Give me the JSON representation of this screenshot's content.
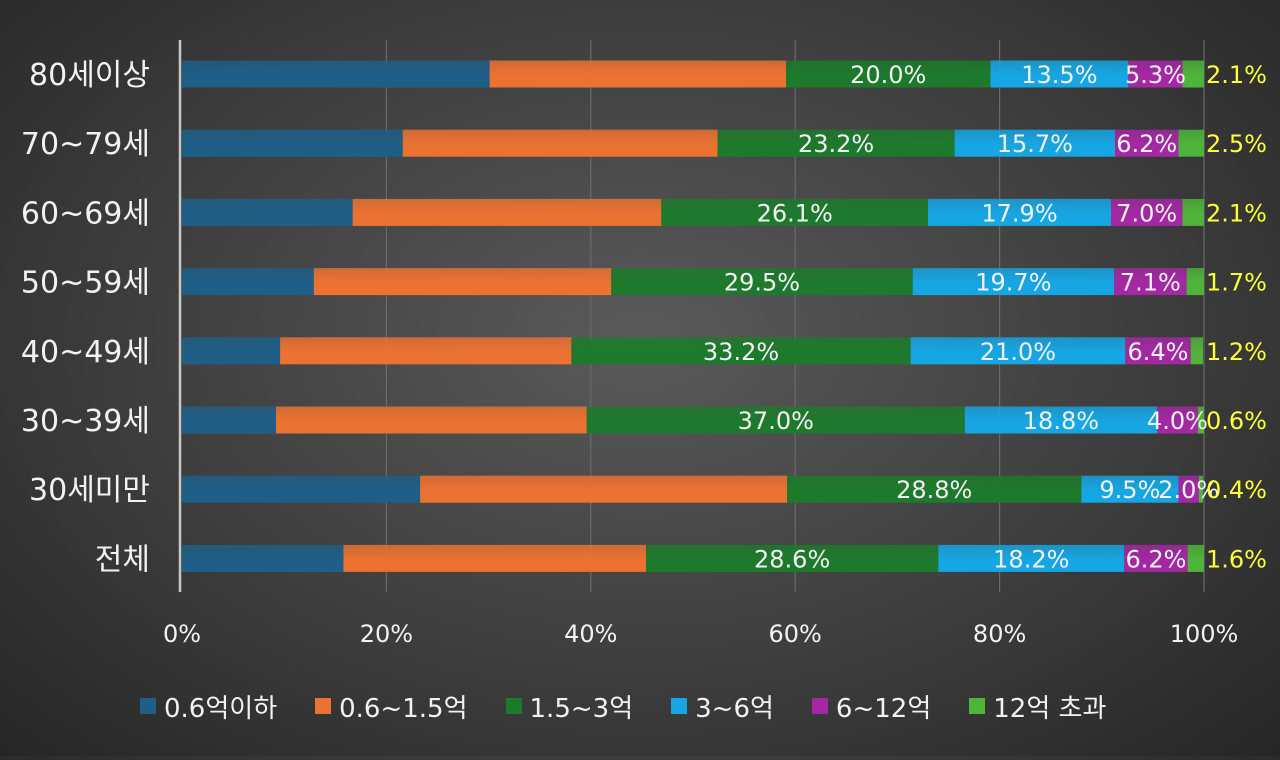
{
  "chart_data": {
    "type": "bar",
    "orientation": "horizontal",
    "stacked": true,
    "categories": [
      "80세이상",
      "70~79세",
      "60~69세",
      "50~59세",
      "40~49세",
      "30~39세",
      "30세미만",
      "전체"
    ],
    "series": [
      {
        "name": "0.6억이하",
        "color": "#1f5f87",
        "values": [
          30.1,
          21.6,
          16.7,
          12.9,
          9.6,
          9.2,
          23.3,
          15.8
        ],
        "labels": [
          "",
          "",
          "",
          "",
          "",
          "",
          "",
          ""
        ]
      },
      {
        "name": "0.6~1.5억",
        "color": "#ec7232",
        "values": [
          29.0,
          30.8,
          30.2,
          29.1,
          28.5,
          30.4,
          35.9,
          29.6
        ],
        "labels": [
          "",
          "",
          "",
          "",
          "",
          "",
          "",
          ""
        ]
      },
      {
        "name": "1.5~3억",
        "color": "#1d7a2c",
        "values": [
          20.0,
          23.2,
          26.1,
          29.5,
          33.2,
          37.0,
          28.8,
          28.6
        ],
        "labels": [
          "20.0%",
          "23.2%",
          "26.1%",
          "29.5%",
          "33.2%",
          "37.0%",
          "28.8%",
          "28.6%"
        ]
      },
      {
        "name": "3~6억",
        "color": "#16a6e3",
        "values": [
          13.5,
          15.7,
          17.9,
          19.7,
          21.0,
          18.8,
          9.5,
          18.2
        ],
        "labels": [
          "13.5%",
          "15.7%",
          "17.9%",
          "19.7%",
          "21.0%",
          "18.8%",
          "9.5%",
          "18.2%"
        ]
      },
      {
        "name": "6~12억",
        "color": "#a428a4",
        "values": [
          5.3,
          6.2,
          7.0,
          7.1,
          6.4,
          4.0,
          2.0,
          6.2
        ],
        "labels": [
          "5.3%",
          "6.2%",
          "7.0%",
          "7.1%",
          "6.4%",
          "4.0%",
          "2.0%",
          "6.2%"
        ]
      },
      {
        "name": "12억 초과",
        "color": "#4fb43a",
        "values": [
          2.1,
          2.5,
          2.1,
          1.7,
          1.2,
          0.6,
          0.4,
          1.6
        ],
        "labels": [
          "2.1%",
          "2.5%",
          "2.1%",
          "1.7%",
          "1.2%",
          "0.6%",
          "0.4%",
          "1.6%"
        ]
      }
    ],
    "xlim": [
      0,
      100
    ],
    "xticks": [
      "0%",
      "20%",
      "40%",
      "60%",
      "80%",
      "100%"
    ],
    "grid": true,
    "legend": "bottom",
    "title": "",
    "xlabel": "",
    "ylabel": ""
  }
}
